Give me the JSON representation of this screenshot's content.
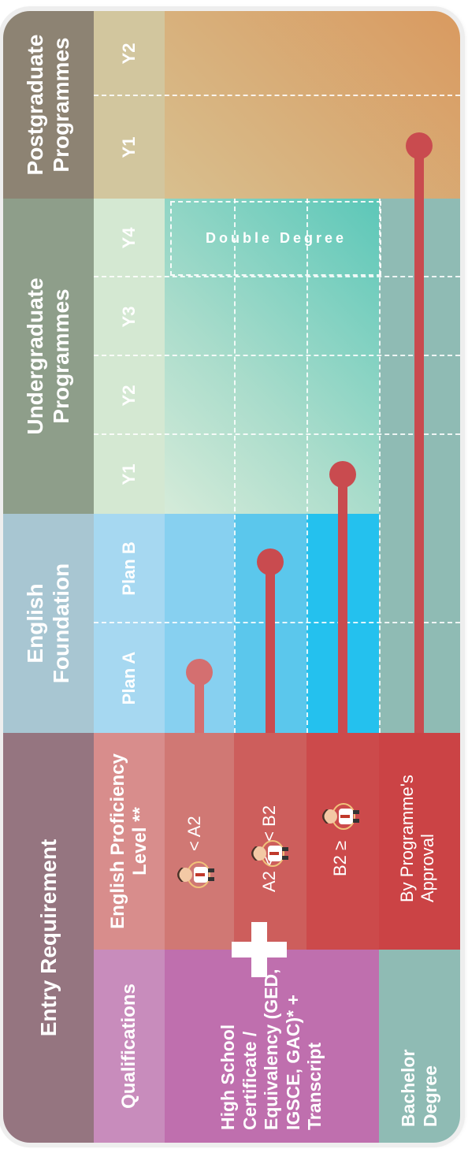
{
  "headers": {
    "entry_requirement": "Entry Requirement",
    "english_foundation": "English Foundation",
    "undergraduate": "Undergraduate Programmes",
    "postgraduate": "Postgraduate Programmes"
  },
  "subheaders": {
    "qualifications": "Qualifications",
    "english_proficiency": "English Proficiency Level **",
    "plan_a": "Plan A",
    "plan_b": "Plan B",
    "ug_y1": "Y1",
    "ug_y2": "Y2",
    "ug_y3": "Y3",
    "ug_y4": "Y4",
    "pg_y1": "Y1",
    "pg_y2": "Y2"
  },
  "qualifications": {
    "high_school": "High School Certificate / Equivalency (GED, IGSCE, GAC)* + Transcript",
    "bachelor": "Bachelor Degree"
  },
  "proficiency": {
    "level1": "< A2",
    "level2": "A2 <   < B2",
    "level3": "B2 ≥",
    "level4": "By Programme's Approval"
  },
  "double_degree": "Double Degree",
  "plus_symbol": "+",
  "colors": {
    "entry_header": "#957580",
    "english_header": "#a8c6d2",
    "ug_header": "#8e9e8a",
    "pg_header": "#8d8373",
    "qualifications": "#bf6fae",
    "proficiency": "#d05a5a",
    "bar": "#c94b4f",
    "bachelor": "#8fbbb4"
  }
}
